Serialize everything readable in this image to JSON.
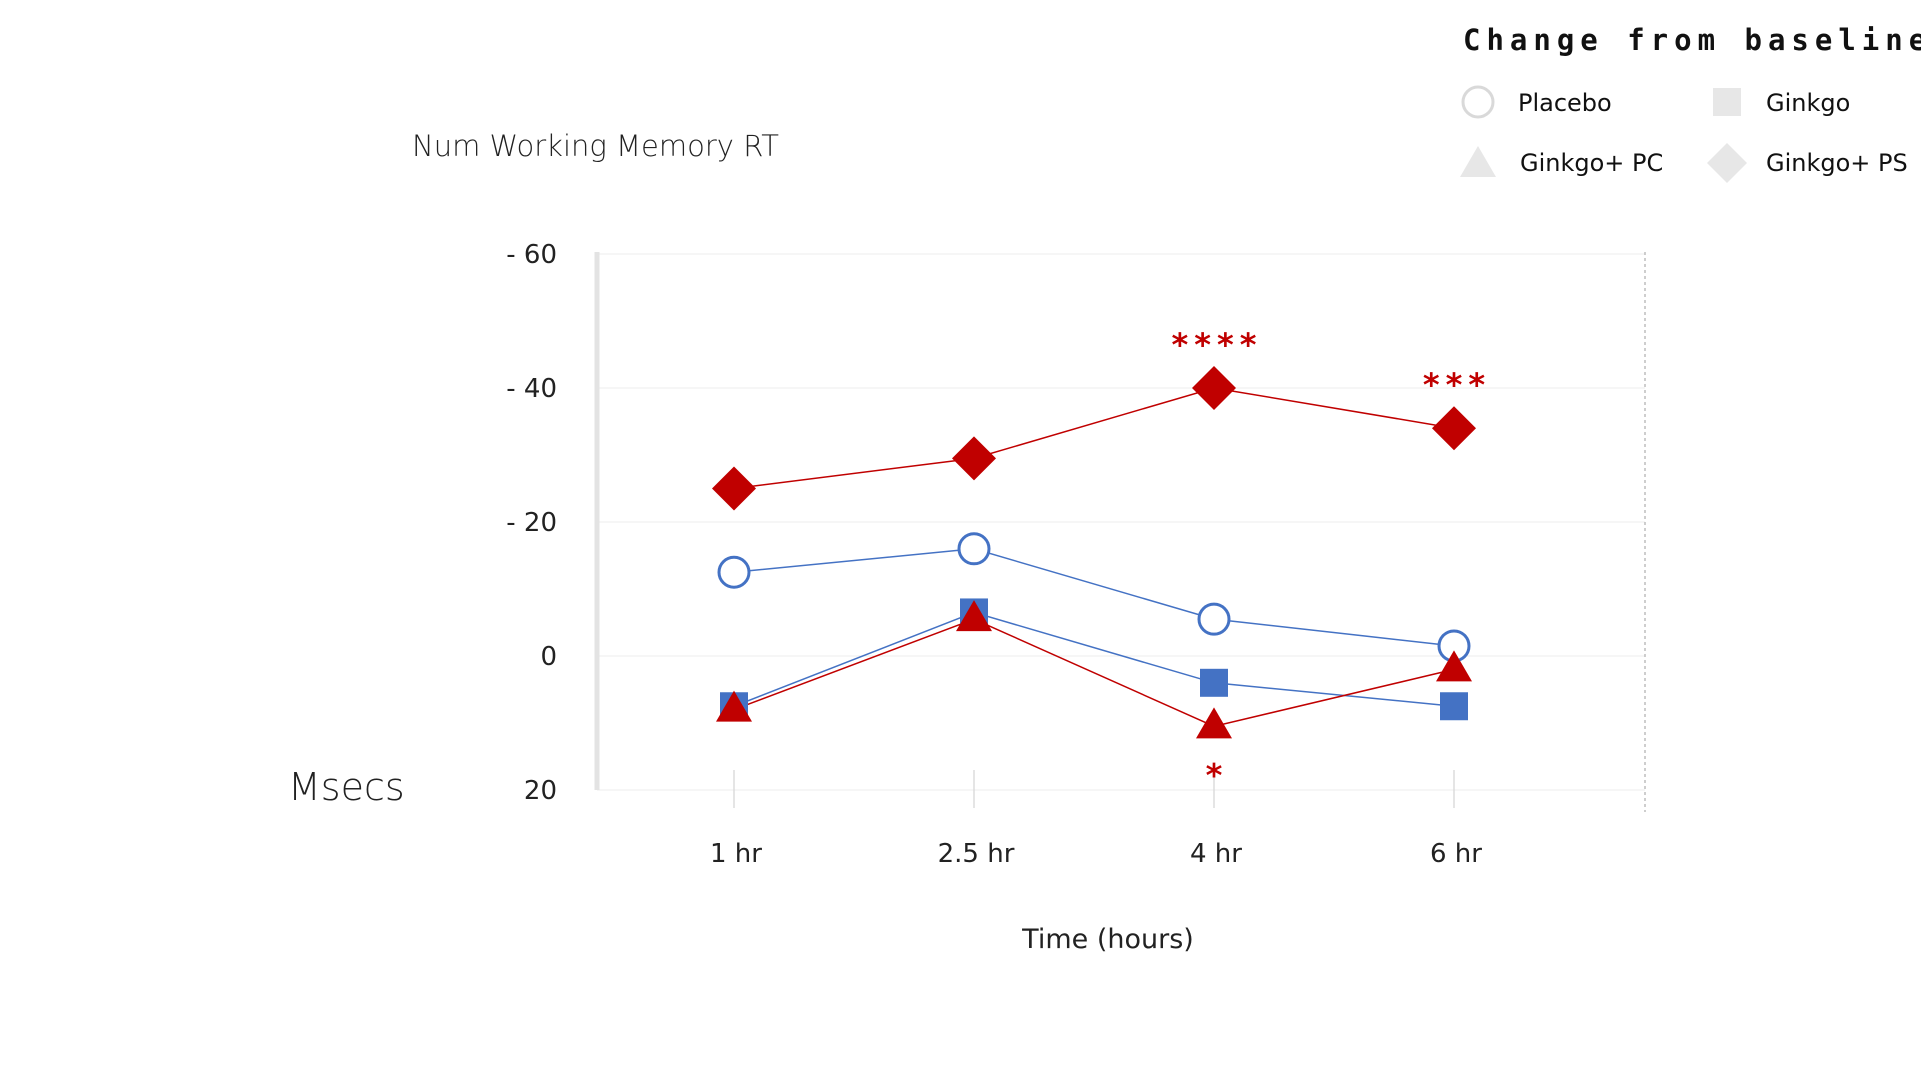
{
  "chart_data": {
    "type": "line",
    "title": "Num Working Memory RT",
    "ylabel": "Msecs",
    "xlabel": "Time (hours)",
    "categories": [
      "1 hr",
      "2.5 hr",
      "4 hr",
      "6 hr"
    ],
    "ylim": [
      20,
      -60
    ],
    "yticks": [
      20,
      0,
      -20,
      -40,
      -60
    ],
    "ytick_labels": [
      "20",
      "0",
      "- 20",
      "- 40",
      "- 60"
    ],
    "legend": {
      "title": "Change from baseline",
      "position": "top-right",
      "entries": [
        "Placebo",
        "Ginkgo",
        "Ginkgo+ PC",
        "Ginkgo+ PS"
      ]
    },
    "series": [
      {
        "name": "Placebo",
        "marker": "circle-open",
        "color": "#4472c4",
        "values": [
          -12.5,
          -16,
          -5.5,
          -1.5
        ]
      },
      {
        "name": "Ginkgo",
        "marker": "square",
        "color": "#4472c4",
        "values": [
          7.5,
          -6.5,
          4,
          7.5
        ]
      },
      {
        "name": "Ginkgo+ PC",
        "marker": "triangle",
        "color": "#c00000",
        "values": [
          8,
          -5.5,
          10.5,
          2
        ]
      },
      {
        "name": "Ginkgo+ PS",
        "marker": "diamond",
        "color": "#c00000",
        "values": [
          -25,
          -29.5,
          -40,
          -34
        ]
      }
    ],
    "annotations": [
      {
        "text": "****",
        "category": "4 hr",
        "series": "Ginkgo+ PS",
        "placement": "above"
      },
      {
        "text": "***",
        "category": "6 hr",
        "series": "Ginkgo+ PS",
        "placement": "above"
      },
      {
        "text": "*",
        "category": "4 hr",
        "series": "Ginkgo+ PC",
        "placement": "below"
      }
    ]
  }
}
